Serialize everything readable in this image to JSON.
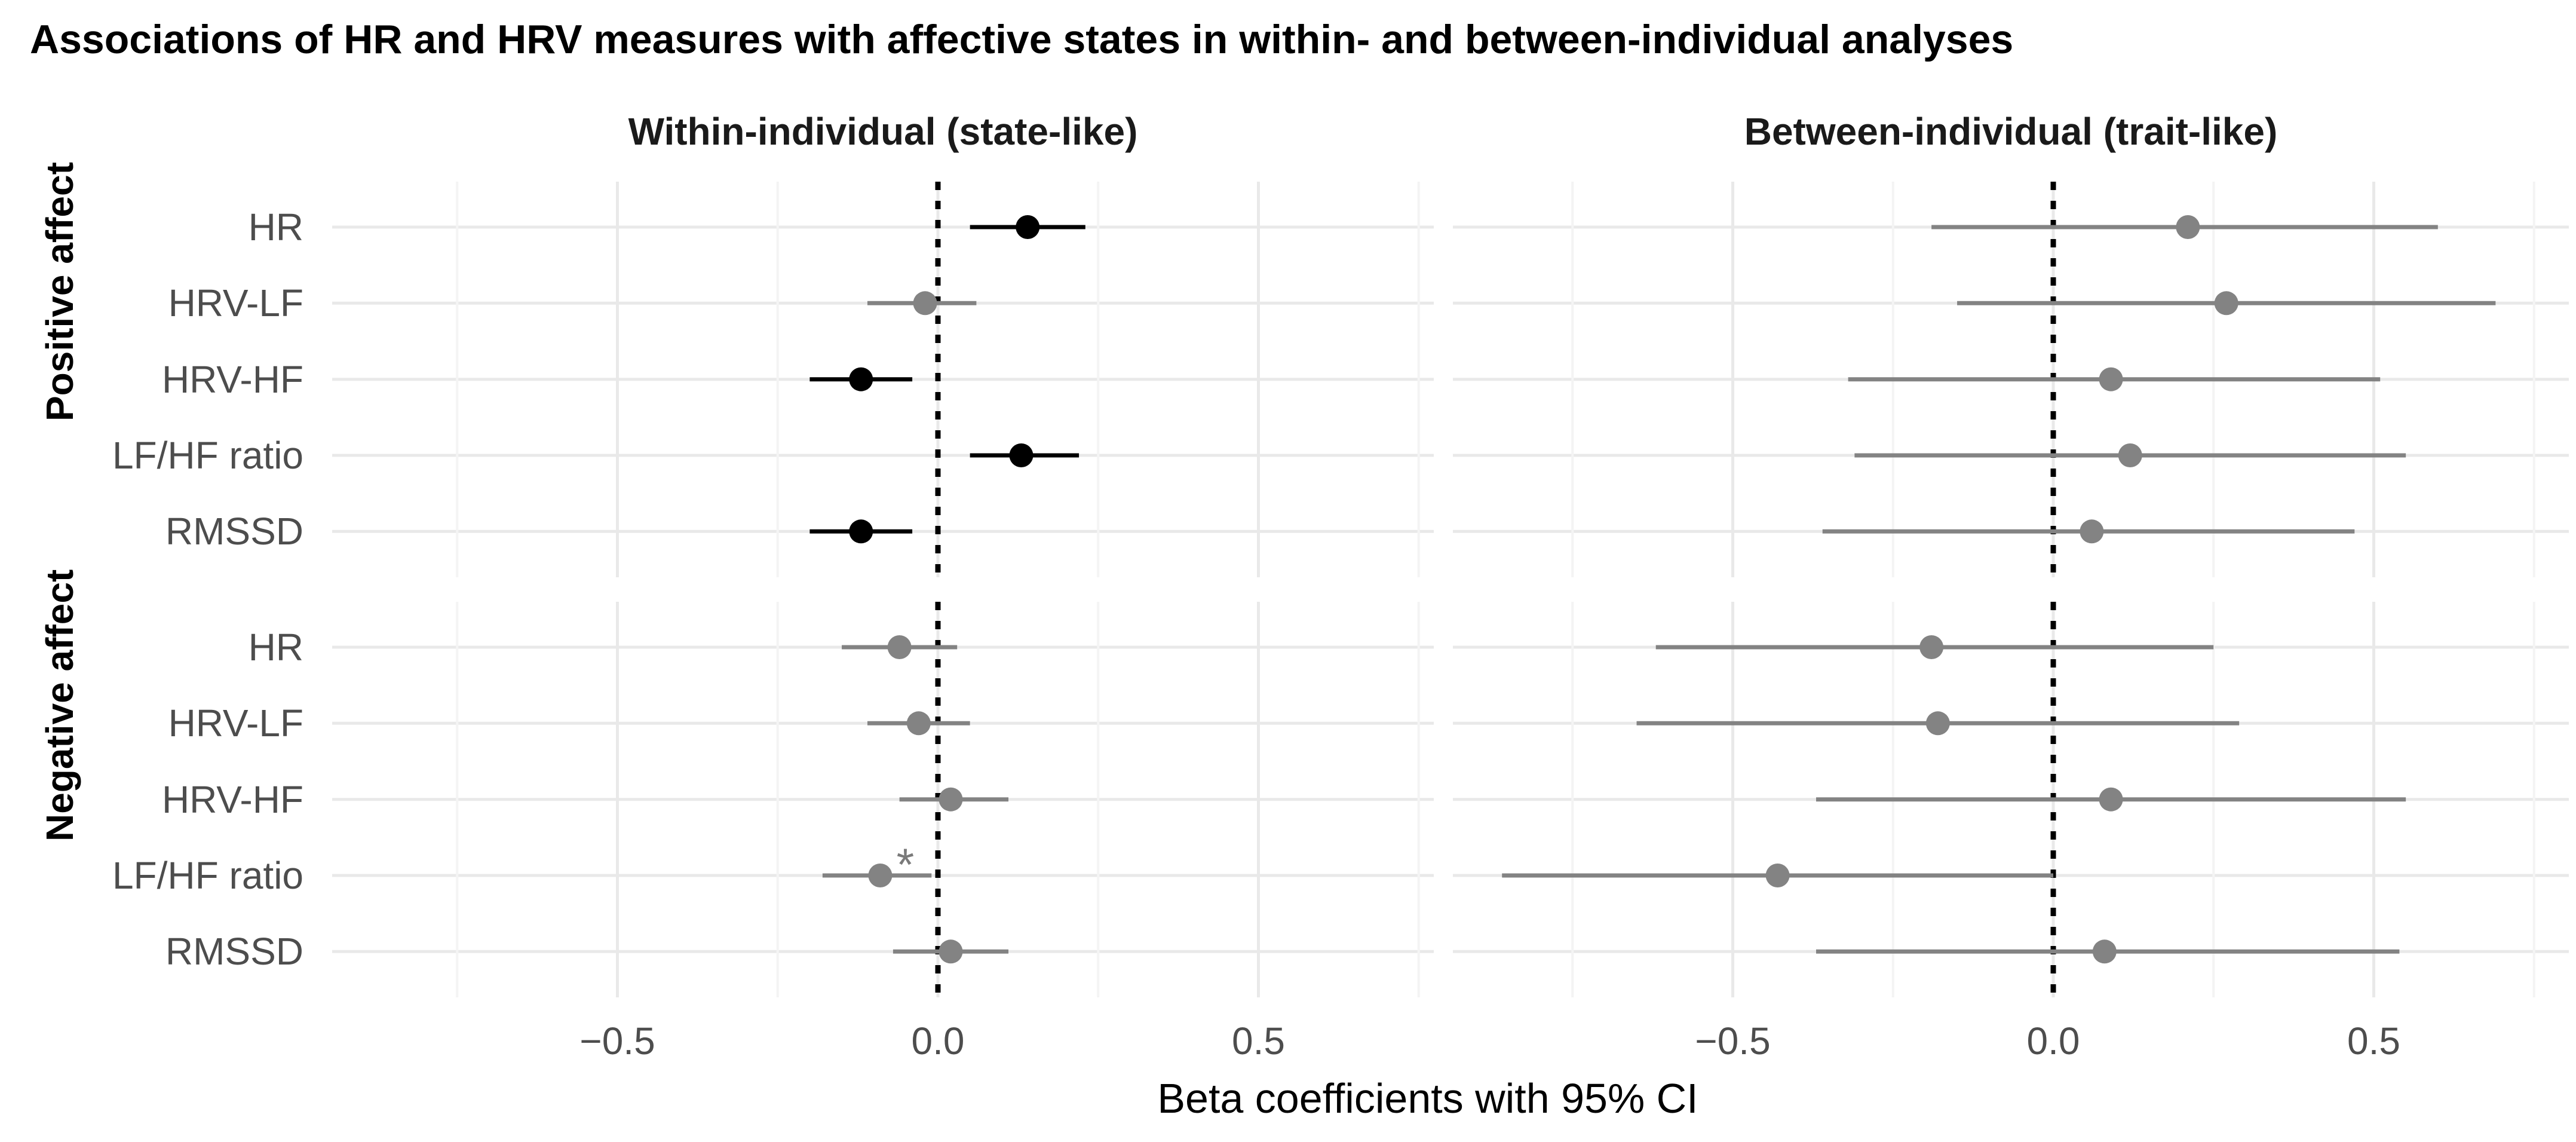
{
  "title": "Associations of HR and HRV measures with affective states in within- and between-individual analyses",
  "chart_data": {
    "type": "forest-plot",
    "facet_cols": [
      "Within-individual (state-like)",
      "Between-individual (trait-like)"
    ],
    "facet_rows": [
      "Positive affect",
      "Negative affect"
    ],
    "measures": [
      "HR",
      "HRV-LF",
      "HRV-HF",
      "LF/HF ratio",
      "RMSSD"
    ],
    "x_axis": {
      "label": "Beta coefficients with 95% CI",
      "ticks": [
        -0.5,
        0.0,
        0.5
      ],
      "tick_labels": [
        "−0.5",
        "0.0",
        "0.5"
      ],
      "minor_gridlines": [
        -0.75,
        -0.25,
        0.25,
        0.75
      ],
      "range": [
        -0.94,
        0.78
      ],
      "reference_line": 0.0,
      "reference_style": "dotted"
    },
    "legend": "black = significant association, gray = non-significant; * = additional significance marker",
    "colors": {
      "significant": "#000000",
      "nonsignificant": "#838383",
      "grid_major": "#e9e9e9",
      "grid_minor": "#f4f4f4",
      "axis_text": "#4d4d4d",
      "asterisk": "#7a7a7a",
      "background": "#ffffff"
    },
    "panels": [
      {
        "row": "Positive affect",
        "col": "Within-individual (state-like)",
        "points": [
          {
            "measure": "HR",
            "beta": 0.14,
            "ci": [
              0.05,
              0.23
            ],
            "significant": true,
            "annotation": ""
          },
          {
            "measure": "HRV-LF",
            "beta": -0.02,
            "ci": [
              -0.11,
              0.06
            ],
            "significant": false,
            "annotation": ""
          },
          {
            "measure": "HRV-HF",
            "beta": -0.12,
            "ci": [
              -0.2,
              -0.04
            ],
            "significant": true,
            "annotation": ""
          },
          {
            "measure": "LF/HF ratio",
            "beta": 0.13,
            "ci": [
              0.05,
              0.22
            ],
            "significant": true,
            "annotation": ""
          },
          {
            "measure": "RMSSD",
            "beta": -0.12,
            "ci": [
              -0.2,
              -0.04
            ],
            "significant": true,
            "annotation": ""
          }
        ]
      },
      {
        "row": "Positive affect",
        "col": "Between-individual (trait-like)",
        "points": [
          {
            "measure": "HR",
            "beta": 0.21,
            "ci": [
              -0.19,
              0.6
            ],
            "significant": false,
            "annotation": ""
          },
          {
            "measure": "HRV-LF",
            "beta": 0.27,
            "ci": [
              -0.15,
              0.69
            ],
            "significant": false,
            "annotation": ""
          },
          {
            "measure": "HRV-HF",
            "beta": 0.09,
            "ci": [
              -0.32,
              0.51
            ],
            "significant": false,
            "annotation": ""
          },
          {
            "measure": "LF/HF ratio",
            "beta": 0.12,
            "ci": [
              -0.31,
              0.55
            ],
            "significant": false,
            "annotation": ""
          },
          {
            "measure": "RMSSD",
            "beta": 0.06,
            "ci": [
              -0.36,
              0.47
            ],
            "significant": false,
            "annotation": ""
          }
        ]
      },
      {
        "row": "Negative affect",
        "col": "Within-individual (state-like)",
        "points": [
          {
            "measure": "HR",
            "beta": -0.06,
            "ci": [
              -0.15,
              0.03
            ],
            "significant": false,
            "annotation": ""
          },
          {
            "measure": "HRV-LF",
            "beta": -0.03,
            "ci": [
              -0.11,
              0.05
            ],
            "significant": false,
            "annotation": ""
          },
          {
            "measure": "HRV-HF",
            "beta": 0.02,
            "ci": [
              -0.06,
              0.11
            ],
            "significant": false,
            "annotation": ""
          },
          {
            "measure": "LF/HF ratio",
            "beta": -0.09,
            "ci": [
              -0.18,
              -0.01
            ],
            "significant": false,
            "annotation": "*"
          },
          {
            "measure": "RMSSD",
            "beta": 0.02,
            "ci": [
              -0.07,
              0.11
            ],
            "significant": false,
            "annotation": ""
          }
        ]
      },
      {
        "row": "Negative affect",
        "col": "Between-individual (trait-like)",
        "points": [
          {
            "measure": "HR",
            "beta": -0.19,
            "ci": [
              -0.62,
              0.25
            ],
            "significant": false,
            "annotation": ""
          },
          {
            "measure": "HRV-LF",
            "beta": -0.18,
            "ci": [
              -0.65,
              0.29
            ],
            "significant": false,
            "annotation": ""
          },
          {
            "measure": "HRV-HF",
            "beta": 0.09,
            "ci": [
              -0.37,
              0.55
            ],
            "significant": false,
            "annotation": ""
          },
          {
            "measure": "LF/HF ratio",
            "beta": -0.43,
            "ci": [
              -0.86,
              0.0
            ],
            "significant": false,
            "annotation": ""
          },
          {
            "measure": "RMSSD",
            "beta": 0.08,
            "ci": [
              -0.37,
              0.54
            ],
            "significant": false,
            "annotation": ""
          }
        ]
      }
    ]
  }
}
